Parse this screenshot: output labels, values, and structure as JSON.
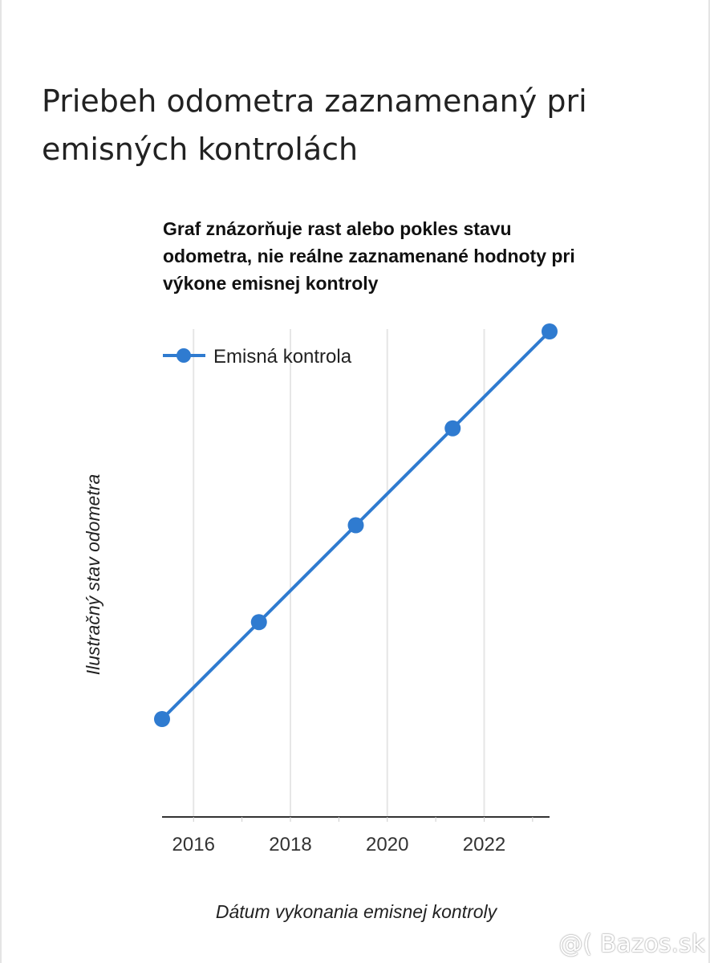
{
  "page": {
    "title": "Priebeh odometra zaznamenaný pri emisných kontrolách",
    "watermark": "@( Bazos.sk"
  },
  "chart_data": {
    "type": "line",
    "title": "Graf znázorňuje rast alebo pokles stavu odometra, nie reálne zaznamenané hodnoty pri výkone emisnej kontroly",
    "xlabel": "Dátum vykonania emisnej kontroly",
    "ylabel": "Ilustračný stav odometra",
    "legend": "top-left",
    "grid": true,
    "x_ticks": [
      2016,
      2018,
      2020,
      2022
    ],
    "x_tick_labels": [
      "2016",
      "2018",
      "2020",
      "2022"
    ],
    "xlim": [
      2015.35,
      2023.35
    ],
    "ylim": [
      0,
      5
    ],
    "series": [
      {
        "name": "Emisná kontrola",
        "color": "#2f7bd0",
        "x": [
          2015.35,
          2017.35,
          2019.35,
          2021.35,
          2023.35
        ],
        "values": [
          1,
          2,
          3,
          4,
          5
        ]
      }
    ]
  }
}
